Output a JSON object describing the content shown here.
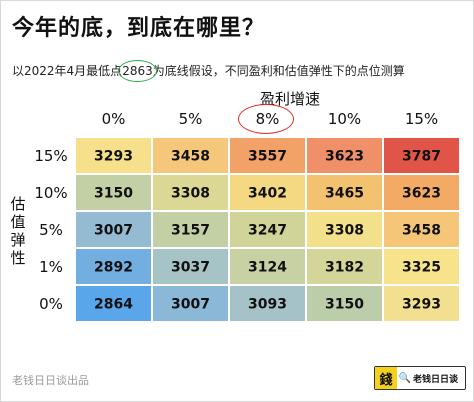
{
  "header": {
    "title": "今年的底，到底在哪里？",
    "subtitle_before": "以2022年4月最低点",
    "subtitle_number": "2863",
    "subtitle_after": "为底线假设，不同盈利和估值弹性下的点位测算"
  },
  "chart_data": {
    "type": "heatmap",
    "xlabel": "盈利增速",
    "ylabel": "估值弹性",
    "x": [
      "0%",
      "5%",
      "8%",
      "10%",
      "15%"
    ],
    "y": [
      "15%",
      "10%",
      "5%",
      "1%",
      "0%"
    ],
    "values": [
      [
        3293,
        3458,
        3557,
        3623,
        3787
      ],
      [
        3150,
        3308,
        3402,
        3465,
        3623
      ],
      [
        3007,
        3157,
        3247,
        3308,
        3458
      ],
      [
        2892,
        3037,
        3124,
        3182,
        3325
      ],
      [
        2864,
        3007,
        3093,
        3150,
        3293
      ]
    ],
    "colors": [
      [
        "#f7e08c",
        "#f5c77a",
        "#f2a266",
        "#ef9068",
        "#e05547"
      ],
      [
        "#c3d0a5",
        "#dbd795",
        "#f5d882",
        "#f3c270",
        "#f2aa65"
      ],
      [
        "#95bbd3",
        "#c3d0a5",
        "#d1d498",
        "#f3e08a",
        "#f5c677"
      ],
      [
        "#73aee0",
        "#a6c3c5",
        "#c7d1a4",
        "#d3d599",
        "#f6e38a"
      ],
      [
        "#5aa6ea",
        "#8cb8d8",
        "#a4c2c8",
        "#bccdaa",
        "#f2df90"
      ]
    ],
    "highlight_column": "8%"
  },
  "footer": {
    "source": "老钱日日谈出品",
    "badge_logo": "錢",
    "badge_text": "老钱日日谈"
  }
}
